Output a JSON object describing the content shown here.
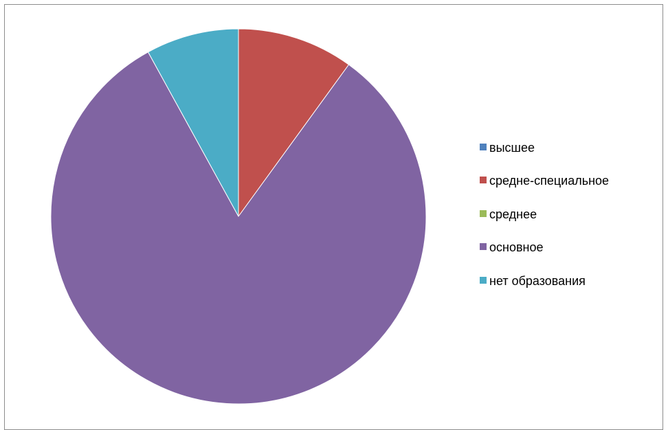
{
  "chart_data": {
    "type": "pie",
    "title": "",
    "start_angle_deg": 0,
    "direction": "clockwise",
    "legend_position": "right",
    "series": [
      {
        "labels": [
          "высшее",
          "средне-специальное",
          "среднее",
          "основное",
          "нет образования"
        ],
        "values": [
          0,
          10,
          0,
          82,
          8
        ],
        "colors": [
          "#4f81bd",
          "#c0504d",
          "#9bbb59",
          "#8064a2",
          "#4bacc6"
        ]
      }
    ]
  }
}
